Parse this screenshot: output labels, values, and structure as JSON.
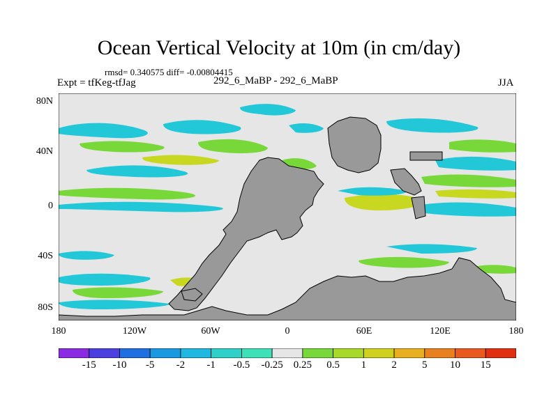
{
  "title": "Ocean Vertical Velocity at 10m (in cm/day)",
  "stats": "rmsd= 0.340575  diff= -0.00804415",
  "experiment": "Expt = tfKeg-tfJag",
  "case_id": "292_6_MaBP - 292_6_MaBP",
  "season": "JJA",
  "axes": {
    "x_ticks": [
      "180",
      "120W",
      "60W",
      "0",
      "60E",
      "120E",
      "180"
    ],
    "y_ticks": [
      "80N",
      "40N",
      "0",
      "40S",
      "80S"
    ]
  },
  "colorbar": {
    "labels": [
      "-15",
      "-10",
      "-5",
      "-2",
      "-1",
      "-0.5",
      "-0.25",
      "0.25",
      "0.5",
      "1",
      "2",
      "5",
      "10",
      "15"
    ],
    "colors": [
      "#8a2be2",
      "#4b3fe0",
      "#1f6fe0",
      "#1a98e0",
      "#20b8e0",
      "#2fd0c8",
      "#3ee0b8",
      "#e6e6e6",
      "#78d83a",
      "#a8d82a",
      "#d0d020",
      "#e8b020",
      "#e88020",
      "#e85a20",
      "#e03010"
    ]
  },
  "map_colors": {
    "land": "#999999",
    "ocean_neutral": "#e6e6e6",
    "positive_weak": "#78d83a",
    "positive_strong": "#c8d820",
    "negative_weak": "#22c8d8",
    "negative_strong": "#2fb8e0"
  }
}
